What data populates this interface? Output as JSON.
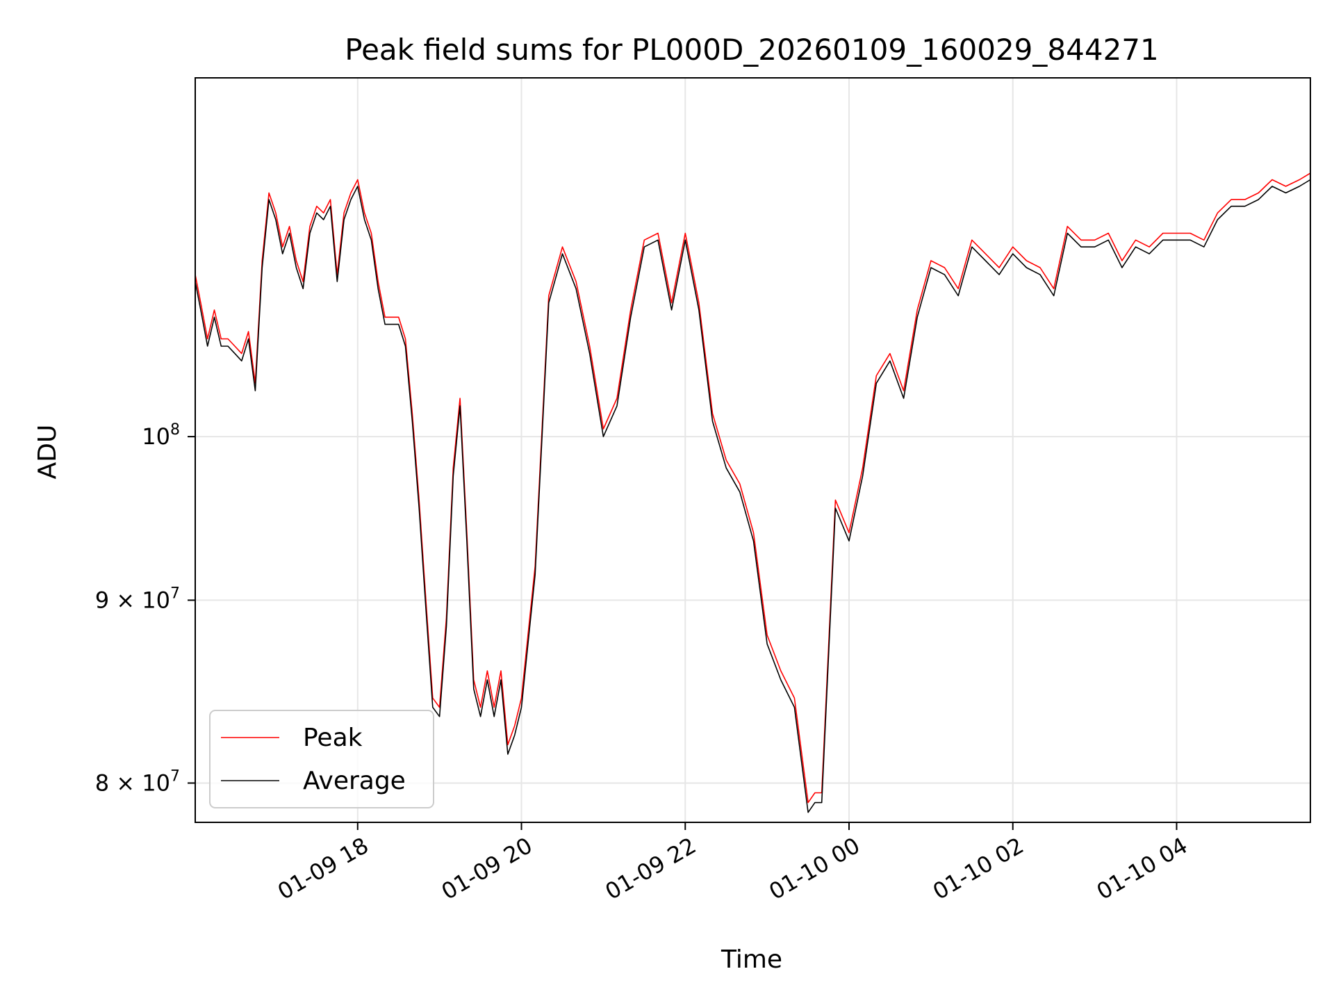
{
  "chart_data": {
    "type": "line",
    "title": "Peak field sums for PL000D_20260109_160029_844271",
    "xlabel": "Time",
    "ylabel": "ADU",
    "y_scale": "log",
    "grid": true,
    "legend_placement": "lower-left",
    "x_range": [
      "2026-01-09 16:01",
      "2026-01-10 05:38"
    ],
    "ylim": [
      78000000,
      126000000
    ],
    "x_ticks": [
      {
        "value": "2026-01-09 18:00",
        "label": "01-09 18"
      },
      {
        "value": "2026-01-09 20:00",
        "label": "01-09 20"
      },
      {
        "value": "2026-01-09 22:00",
        "label": "01-09 22"
      },
      {
        "value": "2026-01-10 00:00",
        "label": "01-10 00"
      },
      {
        "value": "2026-01-10 02:00",
        "label": "01-10 02"
      },
      {
        "value": "2026-01-10 04:00",
        "label": "01-10 04"
      }
    ],
    "y_ticks": [
      {
        "value": 80000000,
        "label_base": "8 × 10",
        "label_exp": "7"
      },
      {
        "value": 90000000,
        "label_base": "9 × 10",
        "label_exp": "7"
      },
      {
        "value": 100000000,
        "label_base": "10",
        "label_exp": "8"
      }
    ],
    "x": [
      "2026-01-09 16:01",
      "2026-01-09 16:05",
      "2026-01-09 16:10",
      "2026-01-09 16:15",
      "2026-01-09 16:20",
      "2026-01-09 16:25",
      "2026-01-09 16:30",
      "2026-01-09 16:35",
      "2026-01-09 16:40",
      "2026-01-09 16:45",
      "2026-01-09 16:50",
      "2026-01-09 16:55",
      "2026-01-09 17:00",
      "2026-01-09 17:05",
      "2026-01-09 17:10",
      "2026-01-09 17:15",
      "2026-01-09 17:20",
      "2026-01-09 17:25",
      "2026-01-09 17:30",
      "2026-01-09 17:35",
      "2026-01-09 17:40",
      "2026-01-09 17:45",
      "2026-01-09 17:50",
      "2026-01-09 17:55",
      "2026-01-09 18:00",
      "2026-01-09 18:05",
      "2026-01-09 18:10",
      "2026-01-09 18:15",
      "2026-01-09 18:20",
      "2026-01-09 18:25",
      "2026-01-09 18:30",
      "2026-01-09 18:35",
      "2026-01-09 18:40",
      "2026-01-09 18:45",
      "2026-01-09 18:50",
      "2026-01-09 18:55",
      "2026-01-09 19:00",
      "2026-01-09 19:05",
      "2026-01-09 19:10",
      "2026-01-09 19:15",
      "2026-01-09 19:20",
      "2026-01-09 19:25",
      "2026-01-09 19:30",
      "2026-01-09 19:35",
      "2026-01-09 19:40",
      "2026-01-09 19:45",
      "2026-01-09 19:50",
      "2026-01-09 19:55",
      "2026-01-09 20:00",
      "2026-01-09 20:10",
      "2026-01-09 20:20",
      "2026-01-09 20:30",
      "2026-01-09 20:40",
      "2026-01-09 20:50",
      "2026-01-09 21:00",
      "2026-01-09 21:10",
      "2026-01-09 21:20",
      "2026-01-09 21:30",
      "2026-01-09 21:40",
      "2026-01-09 21:50",
      "2026-01-09 22:00",
      "2026-01-09 22:10",
      "2026-01-09 22:20",
      "2026-01-09 22:30",
      "2026-01-09 22:40",
      "2026-01-09 22:50",
      "2026-01-09 23:00",
      "2026-01-09 23:10",
      "2026-01-09 23:20",
      "2026-01-09 23:30",
      "2026-01-09 23:35",
      "2026-01-09 23:40",
      "2026-01-09 23:50",
      "2026-01-10 00:00",
      "2026-01-10 00:10",
      "2026-01-10 00:20",
      "2026-01-10 00:30",
      "2026-01-10 00:40",
      "2026-01-10 00:50",
      "2026-01-10 01:00",
      "2026-01-10 01:10",
      "2026-01-10 01:20",
      "2026-01-10 01:30",
      "2026-01-10 01:40",
      "2026-01-10 01:50",
      "2026-01-10 02:00",
      "2026-01-10 02:10",
      "2026-01-10 02:20",
      "2026-01-10 02:30",
      "2026-01-10 02:40",
      "2026-01-10 02:50",
      "2026-01-10 03:00",
      "2026-01-10 03:10",
      "2026-01-10 03:20",
      "2026-01-10 03:30",
      "2026-01-10 03:40",
      "2026-01-10 03:50",
      "2026-01-10 04:00",
      "2026-01-10 04:10",
      "2026-01-10 04:20",
      "2026-01-10 04:30",
      "2026-01-10 04:40",
      "2026-01-10 04:50",
      "2026-01-10 05:00",
      "2026-01-10 05:10",
      "2026-01-10 05:20",
      "2026-01-10 05:30",
      "2026-01-10 05:38"
    ],
    "series": [
      {
        "name": "Peak",
        "color": "#ff0000",
        "values": [
          111000000,
          109000000,
          106500000,
          108500000,
          106500000,
          106500000,
          106000000,
          105500000,
          107000000,
          103500000,
          112000000,
          117000000,
          115500000,
          113000000,
          114500000,
          112000000,
          110500000,
          114500000,
          116000000,
          115500000,
          116500000,
          111000000,
          115500000,
          117000000,
          118000000,
          115500000,
          114000000,
          110500000,
          108000000,
          108000000,
          108000000,
          106500000,
          101500000,
          96000000,
          90000000,
          84500000,
          84000000,
          89000000,
          98000000,
          102500000,
          94000000,
          85500000,
          84000000,
          86000000,
          84000000,
          86000000,
          82000000,
          83000000,
          84500000,
          92000000,
          109500000,
          113000000,
          110500000,
          106000000,
          100500000,
          102500000,
          108500000,
          113500000,
          114000000,
          109000000,
          114000000,
          109000000,
          101500000,
          98500000,
          97000000,
          94000000,
          88000000,
          86000000,
          84500000,
          79000000,
          79500000,
          79500000,
          96000000,
          94000000,
          98000000,
          104000000,
          105500000,
          103000000,
          108500000,
          112000000,
          111500000,
          110000000,
          113500000,
          112500000,
          111500000,
          113000000,
          112000000,
          111500000,
          110000000,
          114500000,
          113500000,
          113500000,
          114000000,
          112000000,
          113500000,
          113000000,
          114000000,
          114000000,
          114000000,
          113500000,
          115500000,
          116500000,
          116500000,
          117000000,
          118000000,
          117500000,
          118000000,
          118500000
        ]
      },
      {
        "name": "Average",
        "color": "#000000",
        "values": [
          110500000,
          108500000,
          106000000,
          108000000,
          106000000,
          106000000,
          105500000,
          105000000,
          106500000,
          103000000,
          111500000,
          116500000,
          115000000,
          112500000,
          114000000,
          111500000,
          110000000,
          114000000,
          115500000,
          115000000,
          116000000,
          110500000,
          115000000,
          116500000,
          117500000,
          115000000,
          113500000,
          110000000,
          107500000,
          107500000,
          107500000,
          106000000,
          101000000,
          95500000,
          89500000,
          84000000,
          83500000,
          88500000,
          97500000,
          102000000,
          93500000,
          85000000,
          83500000,
          85500000,
          83500000,
          85500000,
          81500000,
          82500000,
          84000000,
          91500000,
          109000000,
          112500000,
          110000000,
          105500000,
          100000000,
          102000000,
          108000000,
          113000000,
          113500000,
          108500000,
          113500000,
          108500000,
          101000000,
          98000000,
          96500000,
          93500000,
          87500000,
          85500000,
          84000000,
          78500000,
          79000000,
          79000000,
          95500000,
          93500000,
          97500000,
          103500000,
          105000000,
          102500000,
          108000000,
          111500000,
          111000000,
          109500000,
          113000000,
          112000000,
          111000000,
          112500000,
          111500000,
          111000000,
          109500000,
          114000000,
          113000000,
          113000000,
          113500000,
          111500000,
          113000000,
          112500000,
          113500000,
          113500000,
          113500000,
          113000000,
          115000000,
          116000000,
          116000000,
          116500000,
          117500000,
          117000000,
          117500000,
          118000000
        ]
      }
    ]
  }
}
